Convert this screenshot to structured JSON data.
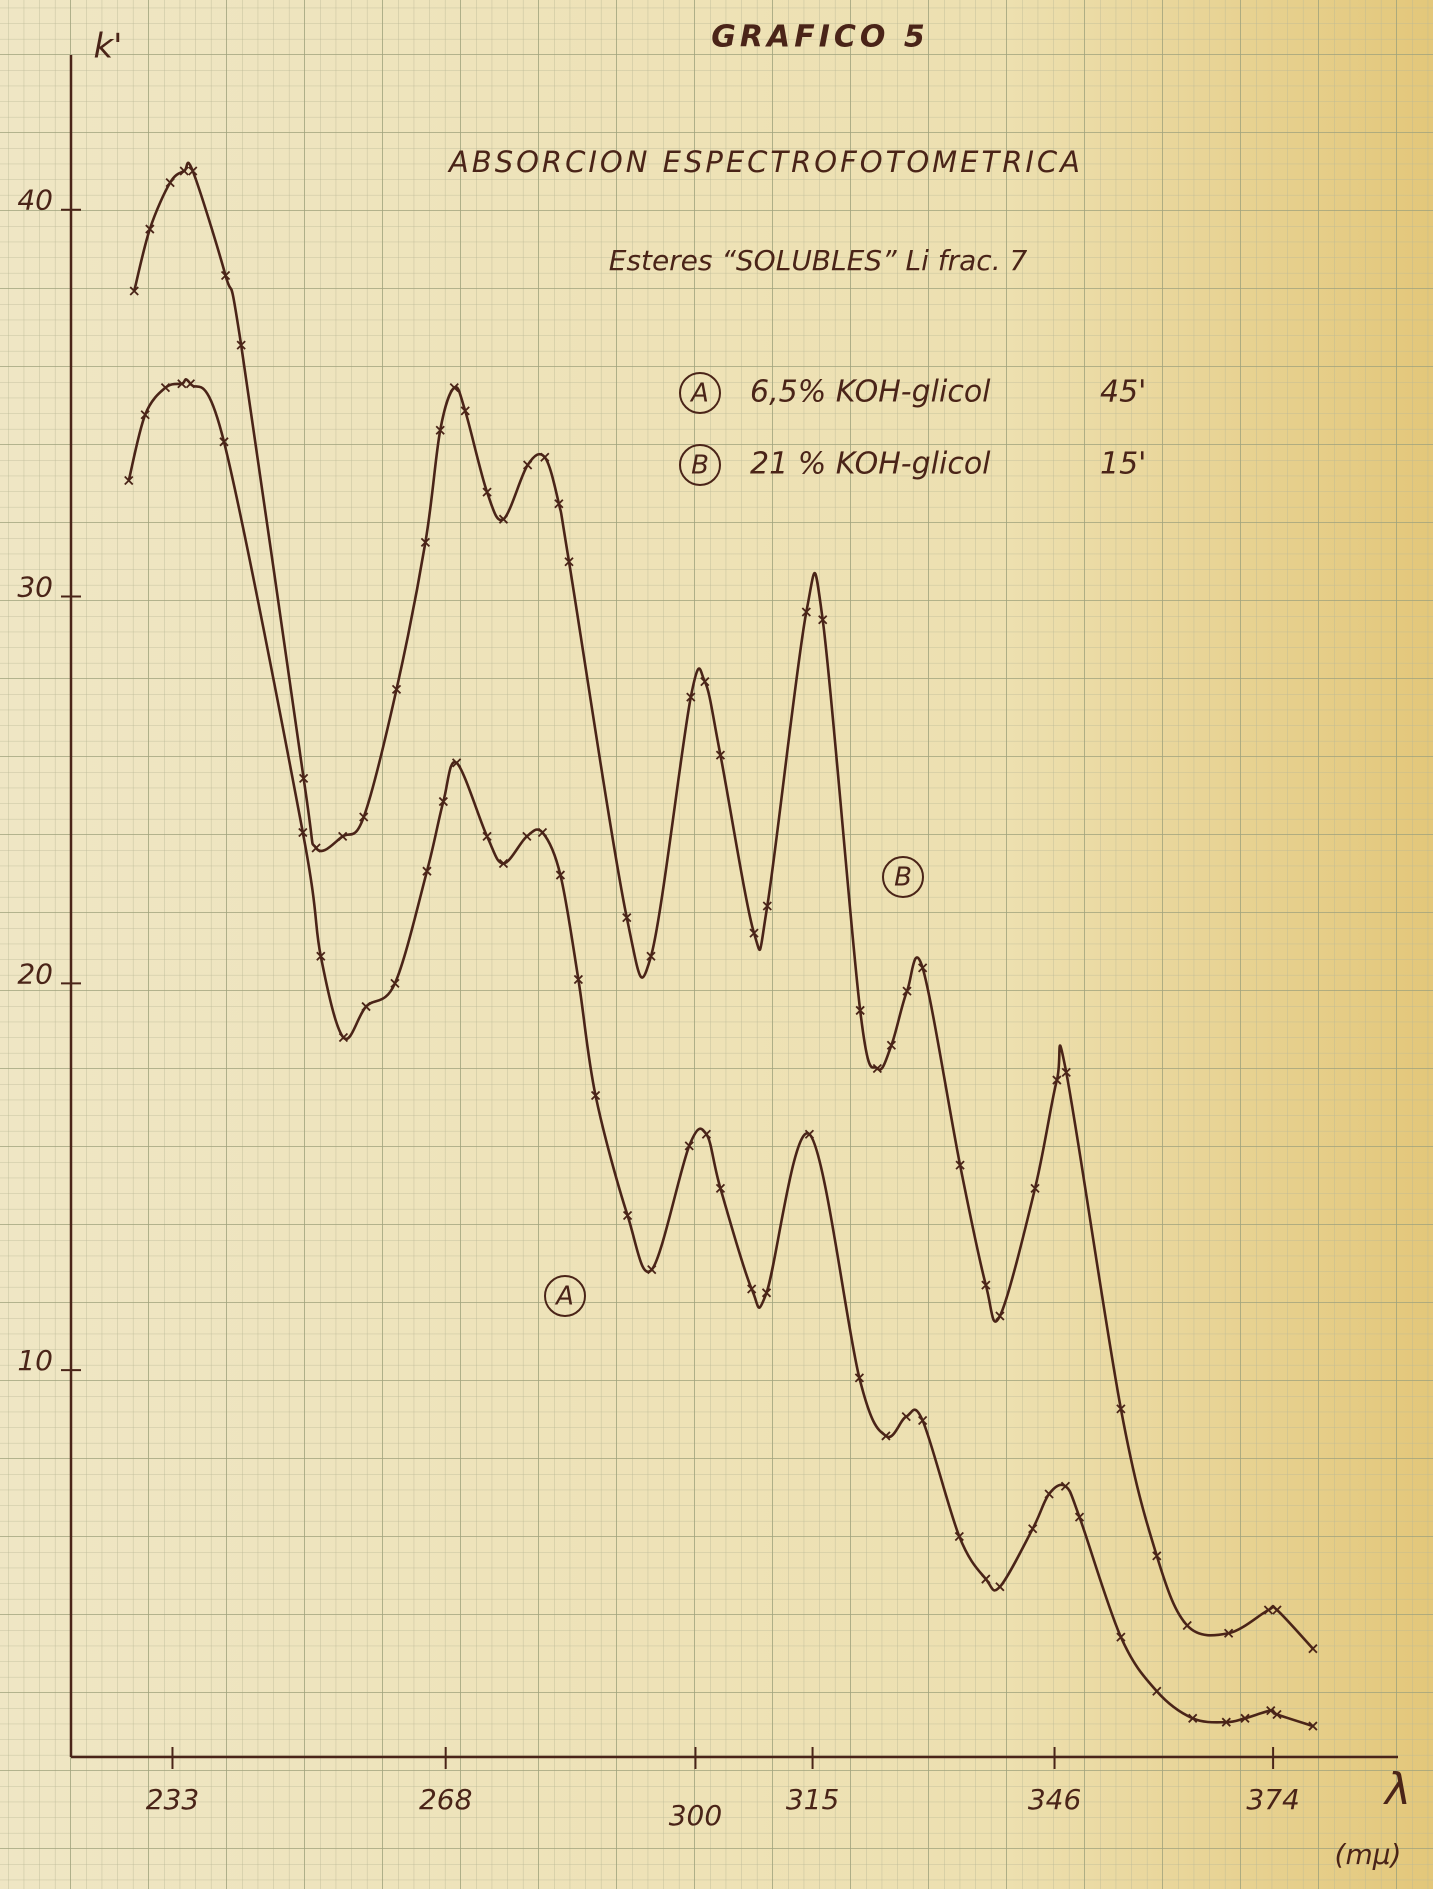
{
  "chart_data": {
    "type": "line",
    "title": "GRAFICO 5",
    "subtitle": "ABSORCION ESPECTROFOTOMETRICA",
    "subtitle2": "Esteres “SOLUBLES” Li   frac. 7",
    "y_label": "k'",
    "x_label": "λ",
    "x_unit": "(mμ)",
    "xlim": [
      220,
      390
    ],
    "ylim": [
      0,
      44
    ],
    "xticks": [
      233,
      268,
      300,
      315,
      346,
      374
    ],
    "yticks": [
      10,
      20,
      30,
      40
    ],
    "grid": true,
    "series": [
      {
        "name": "A",
        "legend_text": "6,5% KOH-glicol",
        "time": "45'",
        "color": "#4a2418",
        "x": [
          227.4,
          229.5,
          232.1,
          234.2,
          235.3,
          239.6,
          249.7,
          252.0,
          254.9,
          257.8,
          261.5,
          265.6,
          267.7,
          269.4,
          273.3,
          275.4,
          278.4,
          280.4,
          282.7,
          285.0,
          287.2,
          291.3,
          294.4,
          299.2,
          301.4,
          303.2,
          307.2,
          309.1,
          314.6,
          321.0,
          324.4,
          327.0,
          329.1,
          333.8,
          337.2,
          339.0,
          343.2,
          345.3,
          347.4,
          349.2,
          354.5,
          359.1,
          363.7,
          368.0,
          370.4,
          373.7,
          374.5,
          379.1
        ],
        "values": [
          33.0,
          34.7,
          35.4,
          35.5,
          35.5,
          34.0,
          23.9,
          20.7,
          18.6,
          19.4,
          20.0,
          22.9,
          24.7,
          25.7,
          23.8,
          23.1,
          23.8,
          23.9,
          22.8,
          20.1,
          17.1,
          14.0,
          12.6,
          15.8,
          16.1,
          14.7,
          12.1,
          12.0,
          16.1,
          9.8,
          8.3,
          8.8,
          8.7,
          5.7,
          4.6,
          4.4,
          5.9,
          6.8,
          7.0,
          6.2,
          3.1,
          1.7,
          1.0,
          0.9,
          1.0,
          1.2,
          1.1,
          0.8
        ]
      },
      {
        "name": "B",
        "legend_text": "21 % KOH-glicol",
        "time": "15'",
        "color": "#4a2418",
        "x": [
          228.1,
          230.1,
          232.7,
          234.5,
          235.6,
          239.8,
          241.8,
          249.8,
          251.4,
          254.8,
          257.5,
          261.7,
          265.4,
          267.3,
          269.1,
          270.5,
          273.3,
          275.4,
          278.5,
          280.7,
          282.5,
          283.8,
          291.2,
          294.3,
          299.4,
          301.2,
          303.2,
          307.5,
          309.2,
          314.2,
          316.3,
          321.1,
          323.3,
          325.1,
          327.1,
          329.1,
          333.9,
          337.2,
          339.0,
          343.5,
          346.3,
          347.5,
          354.5,
          359.1,
          363.0,
          368.3,
          373.4,
          374.5,
          379.1
        ],
        "values": [
          37.9,
          39.5,
          40.7,
          41.0,
          41.0,
          38.3,
          36.5,
          25.3,
          23.5,
          23.8,
          24.3,
          27.6,
          31.4,
          34.3,
          35.4,
          34.8,
          32.7,
          32.0,
          33.4,
          33.6,
          32.4,
          30.9,
          21.7,
          20.7,
          27.4,
          27.8,
          25.9,
          21.3,
          22.0,
          29.6,
          29.4,
          19.3,
          17.8,
          18.4,
          19.8,
          20.4,
          15.3,
          12.2,
          11.4,
          14.7,
          17.5,
          17.7,
          9.0,
          5.2,
          3.4,
          3.2,
          3.8,
          3.8,
          2.8
        ]
      }
    ]
  }
}
